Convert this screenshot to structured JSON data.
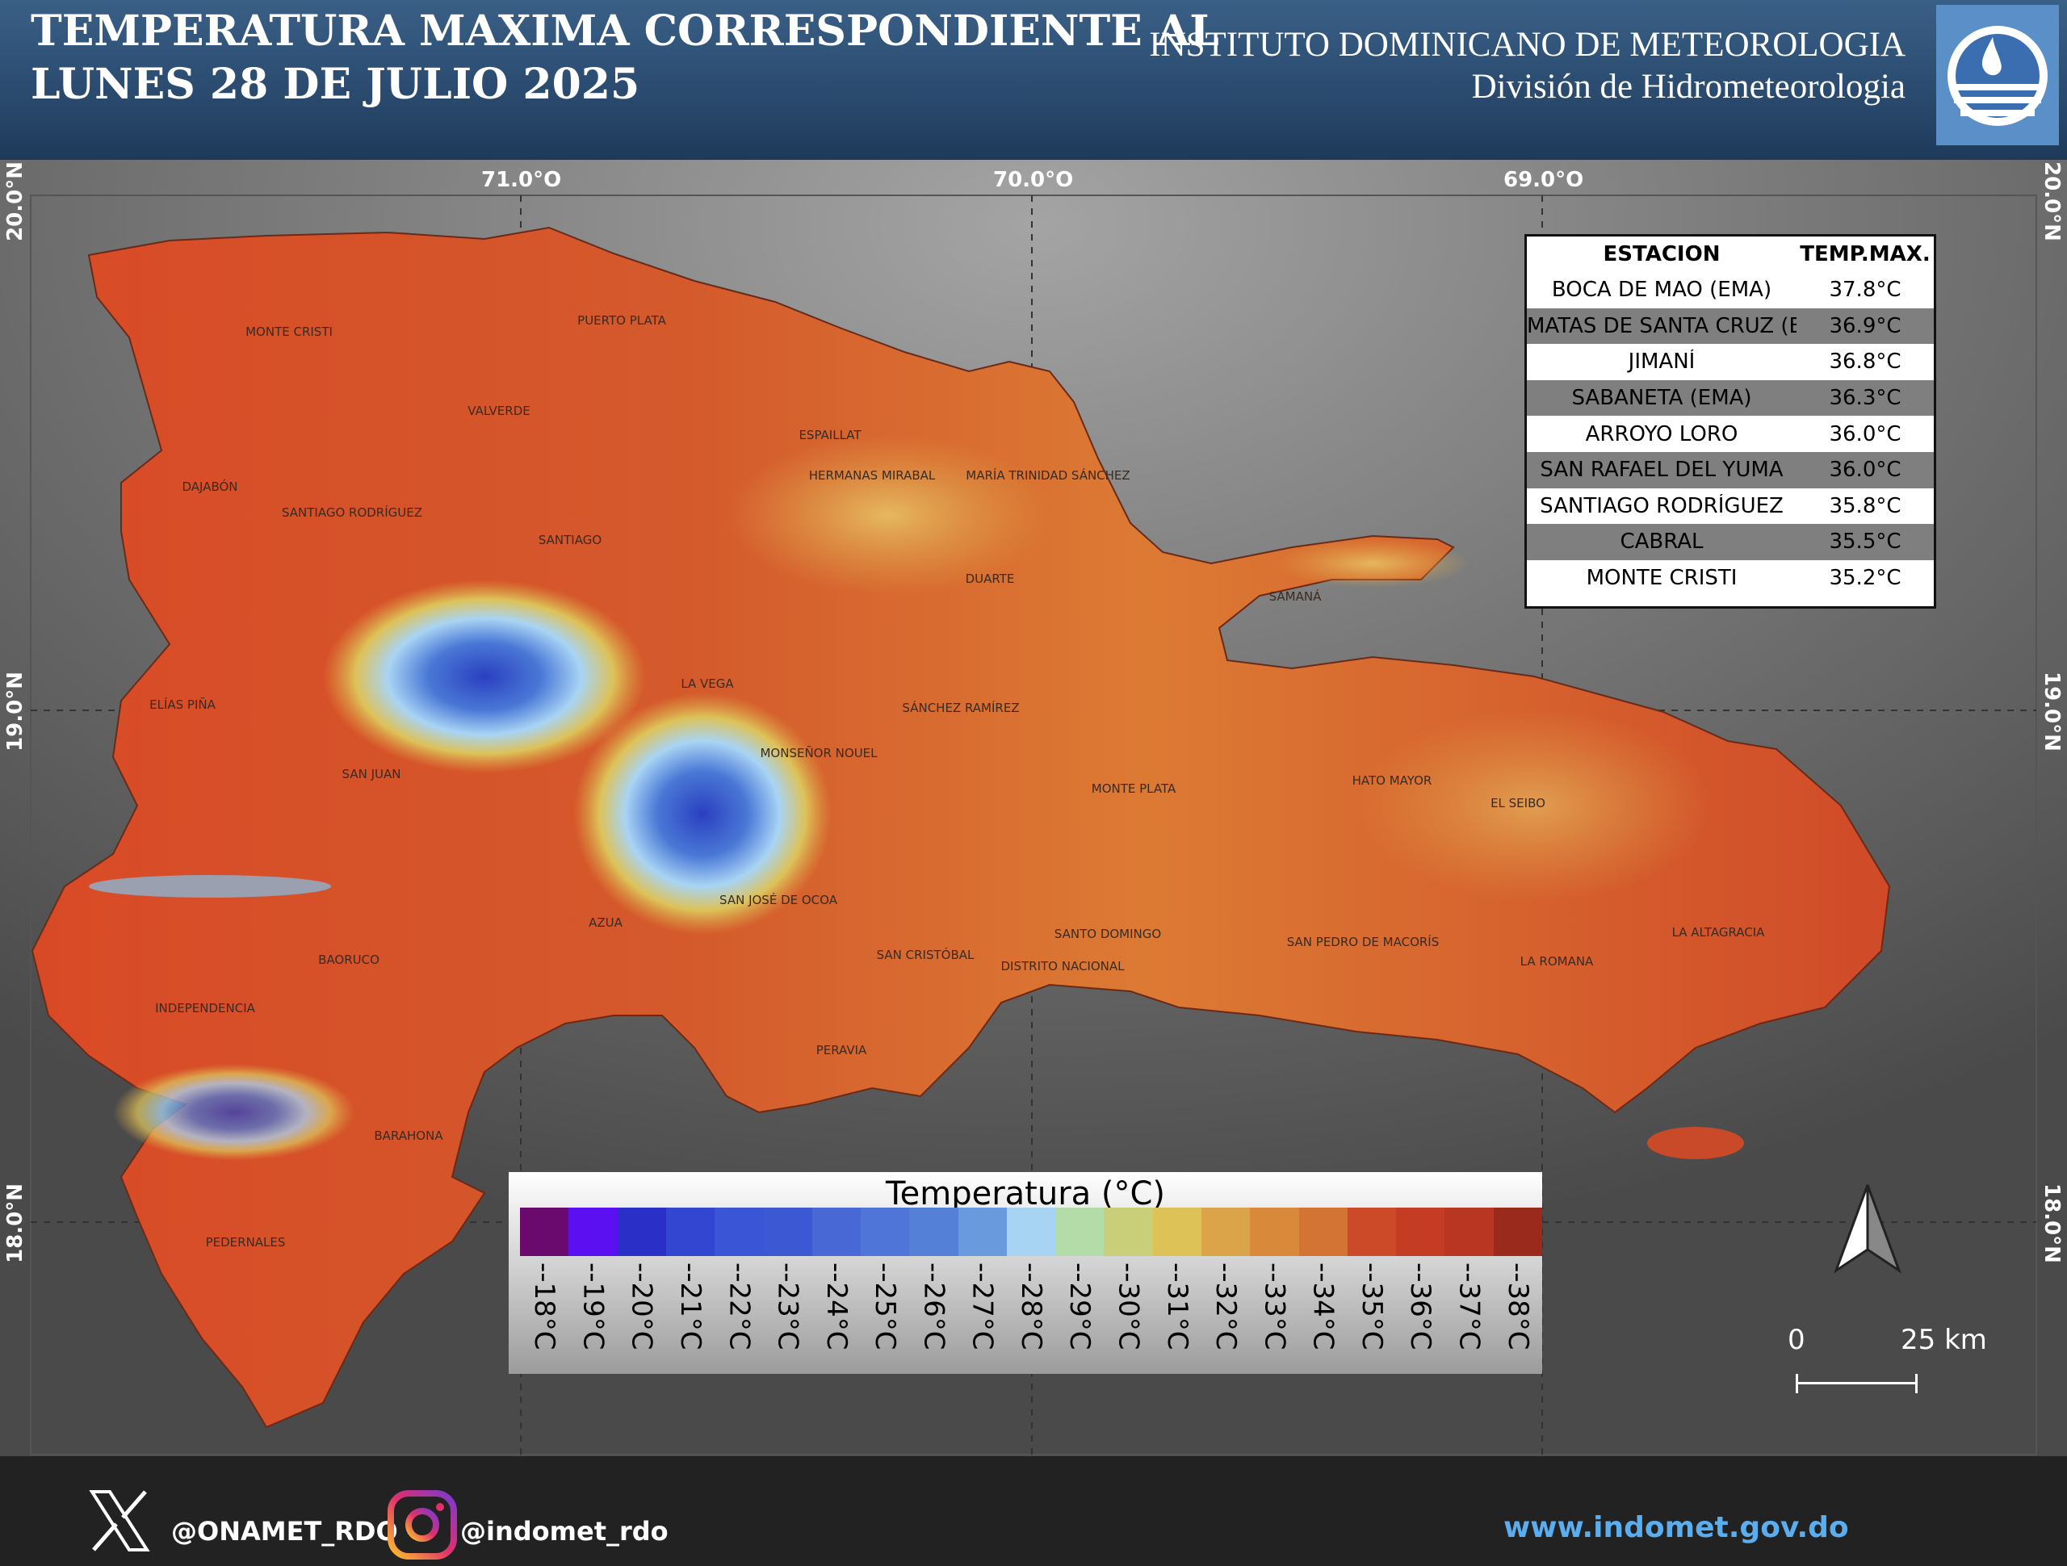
{
  "header": {
    "title_line1": "TEMPERATURA MAXIMA CORRESPONDIENTE AL",
    "title_line2": "LUNES 28 DE JULIO 2025",
    "institution": "INSTITUTO DOMINICANO DE METEOROLOGIA",
    "division": "División de Hidrometeorologia",
    "logo_icon": "indomet-logo-icon"
  },
  "coordinates": {
    "lon_labels": [
      "71.0°O",
      "70.0°O",
      "69.0°O"
    ],
    "lat_labels": [
      "20.0°N",
      "19.0°N",
      "18.0°N"
    ]
  },
  "provinces": [
    "MONTE CRISTI",
    "PUERTO PLATA",
    "VALVERDE",
    "ESPAILLAT",
    "HERMANAS MIRABAL",
    "MARÍA TRINIDAD SÁNCHEZ",
    "DAJABÓN",
    "SANTIAGO RODRÍGUEZ",
    "SANTIAGO",
    "DUARTE",
    "SAMANÁ",
    "LA VEGA",
    "ELÍAS PIÑA",
    "SÁNCHEZ RAMÍREZ",
    "MONSEÑOR NOUEL",
    "SAN JUAN",
    "MONTE PLATA",
    "HATO MAYOR",
    "EL SEIBO",
    "SAN JOSÉ DE OCOA",
    "AZUA",
    "SANTO DOMINGO",
    "SAN PEDRO DE MACORÍS",
    "LA ALTAGRACIA",
    "BAORUCO",
    "SAN CRISTÓBAL",
    "DISTRITO NACIONAL",
    "LA ROMANA",
    "INDEPENDENCIA",
    "PERAVIA",
    "BARAHONA",
    "PEDERNALES"
  ],
  "station_table": {
    "headers": [
      "ESTACION",
      "TEMP.MAX."
    ],
    "rows": [
      {
        "station": "BOCA DE MAO (EMA)",
        "temp": "37.8°C"
      },
      {
        "station": "MATAS DE SANTA CRUZ (E",
        "temp": "36.9°C"
      },
      {
        "station": "JIMANÍ",
        "temp": "36.8°C"
      },
      {
        "station": "SABANETA (EMA)",
        "temp": "36.3°C"
      },
      {
        "station": "ARROYO LORO",
        "temp": "36.0°C"
      },
      {
        "station": "SAN RAFAEL DEL YUMA",
        "temp": "36.0°C"
      },
      {
        "station": "SANTIAGO RODRÍGUEZ",
        "temp": "35.8°C"
      },
      {
        "station": "CABRAL",
        "temp": "35.5°C"
      },
      {
        "station": "MONTE CRISTI",
        "temp": "35.2°C"
      }
    ]
  },
  "legend": {
    "title": "Temperatura (°C)",
    "items": [
      {
        "label": "--18°C",
        "color": "#6a0a6e"
      },
      {
        "label": "--19°C",
        "color": "#5a10f0"
      },
      {
        "label": "--20°C",
        "color": "#2a2fc8"
      },
      {
        "label": "--21°C",
        "color": "#3246d2"
      },
      {
        "label": "--22°C",
        "color": "#3a55d6"
      },
      {
        "label": "--23°C",
        "color": "#3c58d2"
      },
      {
        "label": "--24°C",
        "color": "#4868d6"
      },
      {
        "label": "--25°C",
        "color": "#4f75d8"
      },
      {
        "label": "--26°C",
        "color": "#5580d8"
      },
      {
        "label": "--27°C",
        "color": "#6a9ade"
      },
      {
        "label": "--28°C",
        "color": "#a8d4f4"
      },
      {
        "label": "--29°C",
        "color": "#b4dca8"
      },
      {
        "label": "--30°C",
        "color": "#c9cf78"
      },
      {
        "label": "--31°C",
        "color": "#ddc258"
      },
      {
        "label": "--32°C",
        "color": "#dca448"
      },
      {
        "label": "--33°C",
        "color": "#d88a3a"
      },
      {
        "label": "--34°C",
        "color": "#d47434"
      },
      {
        "label": "--35°C",
        "color": "#cc4a28"
      },
      {
        "label": "--36°C",
        "color": "#c43c24"
      },
      {
        "label": "--37°C",
        "color": "#b83622"
      },
      {
        "label": "--38°C",
        "color": "#9a2a1c"
      }
    ]
  },
  "scale_bar": {
    "start": "0",
    "end": "25 km"
  },
  "north_arrow_icon": "north-arrow-icon",
  "footer": {
    "x_handle": "@ONAMET_RDO",
    "instagram_handle": "@indomet_rdo",
    "website": "www.indomet.gov.do",
    "x_icon": "x-logo-icon",
    "instagram_icon": "instagram-logo-icon"
  }
}
